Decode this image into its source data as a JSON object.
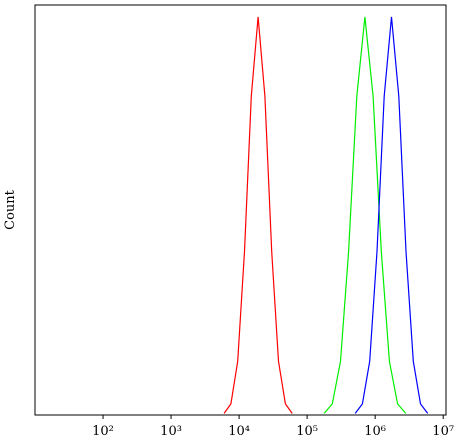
{
  "chart_data": {
    "type": "line",
    "ylabel": "Count",
    "log_x": true,
    "xlim": [
      10,
      11000000
    ],
    "ylim": [
      0,
      103
    ],
    "xticks": [
      {
        "value": 100,
        "label": "10²"
      },
      {
        "value": 1000,
        "label": "10³"
      },
      {
        "value": 10000,
        "label": "10⁴"
      },
      {
        "value": 100000,
        "label": "10⁵"
      },
      {
        "value": 1000000,
        "label": "10⁶"
      },
      {
        "value": 10000000,
        "label": "10⁷"
      }
    ],
    "series": [
      {
        "color": "#ff0000",
        "x": [
          6026,
          7586,
          9550,
          12023,
          15136,
          19055,
          23988,
          30200,
          38019,
          47863,
          60256
        ],
        "values": [
          0.4,
          2.8,
          13.5,
          41.1,
          80.1,
          100,
          80.1,
          41.1,
          13.5,
          2.8,
          0.4
        ]
      },
      {
        "color": "#00ee00",
        "x": [
          177828,
          234423,
          309030,
          407380,
          537032,
          707946,
          933254,
          1230269,
          1621810,
          2137962,
          2818383
        ],
        "values": [
          0.4,
          2.8,
          13.5,
          41.1,
          80.1,
          100,
          80.1,
          41.1,
          13.5,
          2.8,
          0.4
        ]
      },
      {
        "color": "#0000ff",
        "x": [
          509331,
          650130,
          831764,
          1064143,
          1358313,
          1737801,
          2223300,
          2837919,
          3630781,
          4645152,
          5929253
        ],
        "values": [
          0.4,
          2.8,
          13.5,
          41.1,
          80.1,
          100,
          80.1,
          41.1,
          13.5,
          2.8,
          0.4
        ]
      }
    ]
  }
}
